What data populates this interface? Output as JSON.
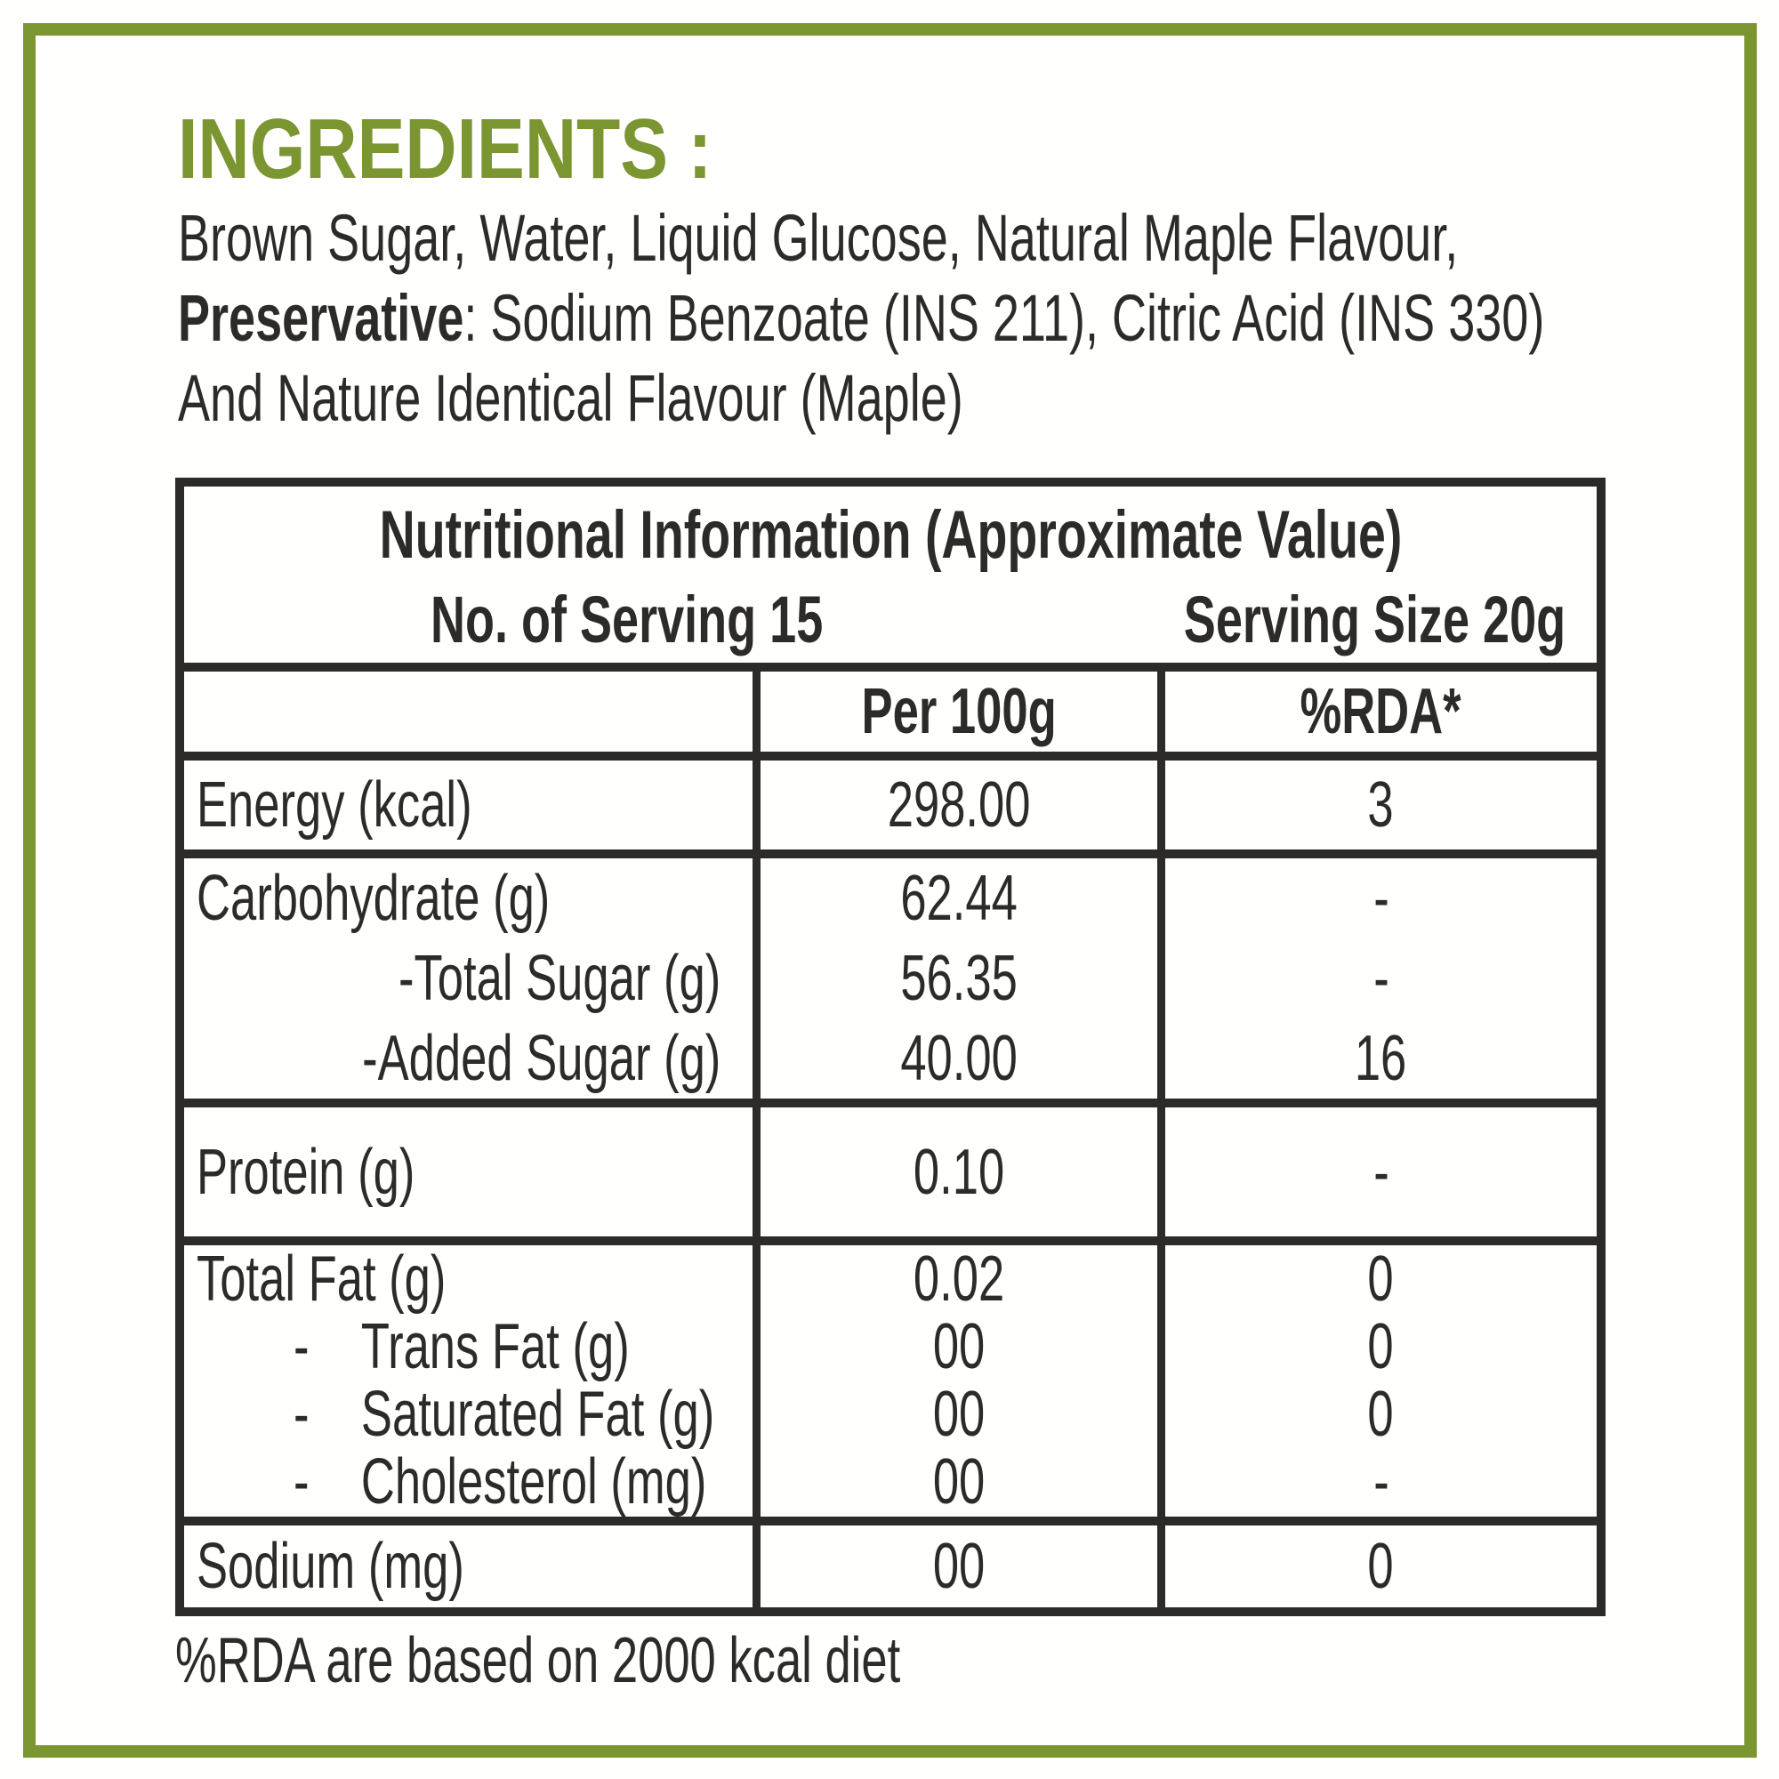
{
  "page": {
    "accent_color": "#7b9530",
    "text_color": "#2d2b29"
  },
  "ingredients": {
    "heading": "INGREDIENTS :",
    "line1": "Brown Sugar, Water, Liquid Glucose, Natural Maple Flavour,",
    "line2_bold": "Preservative",
    "line2_rest": ": Sodium Benzoate (INS 211), Citric Acid (INS 330)",
    "line3": "And Nature Identical Flavour (Maple)"
  },
  "nutrition_table": {
    "title": "Nutritional Information (Approximate Value)",
    "servings": "No. of Serving 15",
    "serving_size": "Serving Size 20g",
    "columns": {
      "per_100g": "Per 100g",
      "rda": "%RDA*"
    },
    "energy": {
      "label": "Energy (kcal)",
      "per_100g": "298.00",
      "rda": "3"
    },
    "carbohydrate": {
      "label": "Carbohydrate (g)",
      "per_100g": "62.44",
      "rda": "-",
      "total_sugar": {
        "label": "-Total Sugar (g)",
        "per_100g": "56.35",
        "rda": "-"
      },
      "added_sugar": {
        "label": "-Added Sugar (g)",
        "per_100g": "40.00",
        "rda": "16"
      }
    },
    "protein": {
      "label": "Protein (g)",
      "per_100g": "0.10",
      "rda": "-"
    },
    "total_fat": {
      "label": "Total Fat (g)",
      "per_100g": "0.02",
      "rda": "0",
      "trans_fat": {
        "dash": "-",
        "label": "Trans Fat (g)",
        "per_100g": "00",
        "rda": "0"
      },
      "saturated_fat": {
        "dash": "-",
        "label": "Saturated Fat (g)",
        "per_100g": "00",
        "rda": "0"
      },
      "cholesterol": {
        "dash": "-",
        "label": "Cholesterol (mg)",
        "per_100g": "00",
        "rda": "-"
      }
    },
    "sodium": {
      "label": "Sodium (mg)",
      "per_100g": "00",
      "rda": "0"
    }
  },
  "footnote": "%RDA are based on 2000 kcal diet"
}
